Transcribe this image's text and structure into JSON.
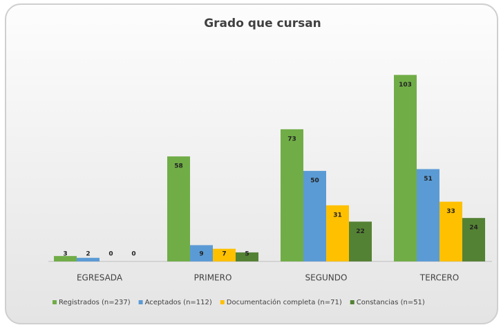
{
  "chart_data": {
    "type": "bar",
    "title": "Grado que cursan",
    "categories": [
      "EGRESADA",
      "PRIMERO",
      "SEGUNDO",
      "TERCERO"
    ],
    "series": [
      {
        "name": "Registrados (n=237)",
        "color": "#70ad47",
        "values": [
          3,
          58,
          73,
          103
        ]
      },
      {
        "name": "Aceptados (n=112)",
        "color": "#5b9bd5",
        "values": [
          2,
          9,
          50,
          51
        ]
      },
      {
        "name": "Documentación completa (n=71)",
        "color": "#ffc000",
        "values": [
          0,
          7,
          31,
          33
        ]
      },
      {
        "name": "Constancias (n=51)",
        "color": "#548235",
        "values": [
          0,
          5,
          22,
          24
        ]
      }
    ],
    "ylim": [
      0,
      110
    ],
    "legend": "bottom"
  }
}
